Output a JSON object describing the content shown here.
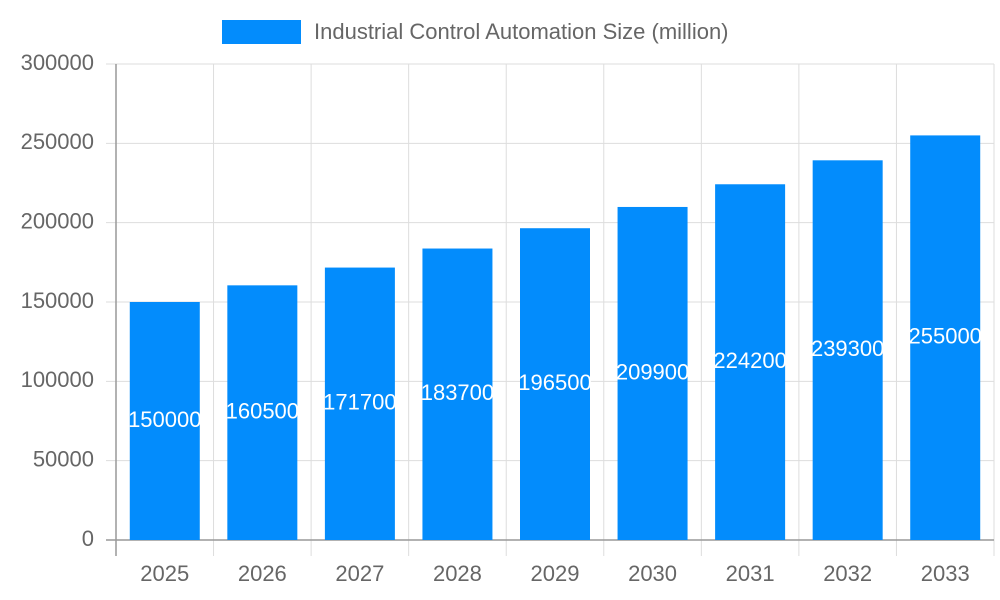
{
  "chart_data": {
    "type": "bar",
    "categories": [
      "2025",
      "2026",
      "2027",
      "2028",
      "2029",
      "2030",
      "2031",
      "2032",
      "2033"
    ],
    "series": [
      {
        "name": "Industrial Control Automation Size (million)",
        "color": "#038cfc",
        "values": [
          150000,
          160500,
          171700,
          183700,
          196500,
          209900,
          224200,
          239300,
          255000
        ]
      }
    ],
    "ylim": [
      0,
      300000
    ],
    "yticks": [
      0,
      50000,
      100000,
      150000,
      200000,
      250000,
      300000
    ],
    "grid": true,
    "legend": "top",
    "data_labels": true
  }
}
